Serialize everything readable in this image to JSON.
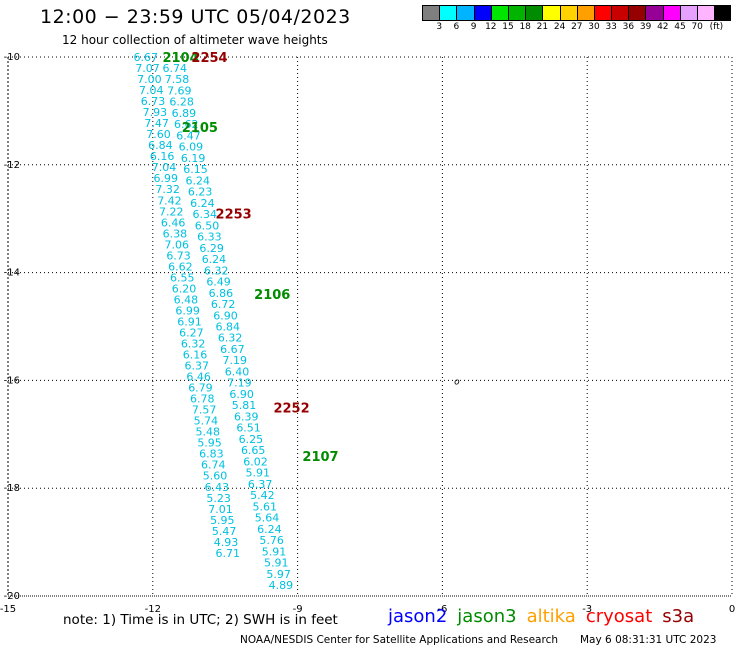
{
  "header": {
    "title": "12:00 − 23:59 UTC 05/04/2023",
    "subtitle": "12 hour collection of altimeter wave heights"
  },
  "colorbar": {
    "colors": [
      "#7f7f7f",
      "#00ffff",
      "#00b4ff",
      "#0000ff",
      "#00e600",
      "#00b400",
      "#008c00",
      "#ffff00",
      "#ffd200",
      "#ffa000",
      "#ff0000",
      "#c80000",
      "#960000",
      "#960096",
      "#ff00ff",
      "#e6a0ff",
      "#ffb4ff",
      "#000000"
    ],
    "labels": [
      "3",
      "6",
      "9",
      "12",
      "15",
      "18",
      "21",
      "24",
      "27",
      "30",
      "33",
      "36",
      "39",
      "42",
      "45",
      "70",
      "(ft)"
    ]
  },
  "axes": {
    "lon_ticks": [
      "-15",
      "-12",
      "-9",
      "-6",
      "-3",
      "0"
    ],
    "lat_ticks": [
      "-10",
      "-12",
      "-14",
      "-16",
      "-18",
      "-20"
    ]
  },
  "chart_data": {
    "type": "scatter",
    "xlim": [
      -15,
      0
    ],
    "ylim": [
      -20,
      -10
    ],
    "grid": true,
    "map_feature": "o",
    "tracks": [
      {
        "satellite": "jason3",
        "color": "#00c0e0",
        "lon_start": -12.4,
        "lat_start": -10.0,
        "lon_end": -10.7,
        "lat_end": -19.2,
        "values": [
          "6.67",
          "7.07",
          "7.00",
          "7.04",
          "6.73",
          "7.93",
          "7.47",
          "7.60",
          "6.84",
          "6.16",
          "7.04",
          "6.99",
          "7.32",
          "7.42",
          "7.22",
          "6.46",
          "6.38",
          "7.06",
          "6.73",
          "6.62",
          "6.55",
          "6.20",
          "6.48",
          "6.99",
          "6.91",
          "6.27",
          "6.32",
          "6.16",
          "6.37",
          "6.46",
          "6.79",
          "6.78",
          "7.57",
          "5.74",
          "5.48",
          "5.95",
          "6.83",
          "6.74",
          "5.60",
          "6.43",
          "5.23",
          "7.01",
          "5.95",
          "5.47",
          "4.93",
          "6.71"
        ]
      },
      {
        "satellite": "jason3",
        "color": "#00c0e0",
        "lon_start": -11.8,
        "lat_start": -10.2,
        "lon_end": -9.6,
        "lat_end": -19.8,
        "values": [
          "6.74",
          "7.58",
          "7.69",
          "6.28",
          "6.89",
          "6.62",
          "6.47",
          "6.09",
          "6.19",
          "6.15",
          "6.24",
          "6.23",
          "6.24",
          "6.34",
          "6.50",
          "6.33",
          "6.29",
          "6.24",
          "6.32",
          "6.49",
          "6.86",
          "6.72",
          "6.90",
          "6.84",
          "6.32",
          "6.67",
          "7.19",
          "6.40",
          "7.19",
          "6.90",
          "5.81",
          "6.39",
          "6.51",
          "6.25",
          "6.65",
          "6.02",
          "5.91",
          "6.37",
          "5.42",
          "5.61",
          "5.64",
          "6.24",
          "5.76",
          "5.91",
          "5.91",
          "5.97",
          "4.89"
        ]
      }
    ],
    "time_labels": [
      {
        "text": "2104",
        "color": "#008c00",
        "lon": -11.8,
        "lat": -10.0
      },
      {
        "text": "2254",
        "color": "#960000",
        "lon": -11.2,
        "lat": -10.0
      },
      {
        "text": "2105",
        "color": "#008c00",
        "lon": -11.4,
        "lat": -11.3
      },
      {
        "text": "2253",
        "color": "#960000",
        "lon": -10.7,
        "lat": -12.9
      },
      {
        "text": "2106",
        "color": "#008c00",
        "lon": -9.9,
        "lat": -14.4
      },
      {
        "text": "2252",
        "color": "#960000",
        "lon": -9.5,
        "lat": -16.5
      },
      {
        "text": "2107",
        "color": "#008c00",
        "lon": -8.9,
        "lat": -17.4
      }
    ]
  },
  "footer": {
    "note": "note:  1) Time is in UTC;  2) SWH is in feet",
    "legend": [
      {
        "name": "jason2",
        "color": "#0000ff"
      },
      {
        "name": "jason3",
        "color": "#008c00"
      },
      {
        "name": "altika",
        "color": "#ffa000"
      },
      {
        "name": "cryosat",
        "color": "#ff0000"
      },
      {
        "name": "s3a",
        "color": "#960000"
      }
    ],
    "credit": "NOAA/NESDIS Center for Satellite Applications and Research",
    "timestamp": "May  6 08:31:31 UTC 2023"
  }
}
